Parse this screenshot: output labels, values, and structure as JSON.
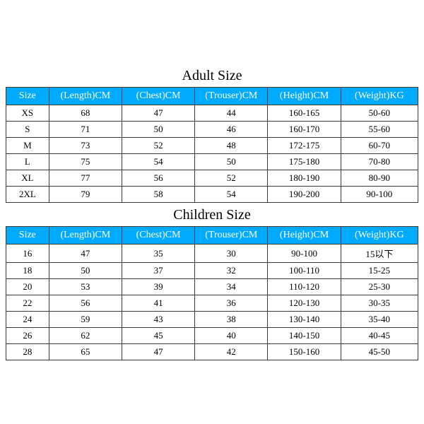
{
  "header_bg": "#00aaff",
  "header_fg": "#ffffff",
  "border_color": "#3a3a3a",
  "adult": {
    "title": "Adult Size",
    "columns": [
      "Size",
      "(Length)CM",
      "(Chest)CM",
      "(Trouser)CM",
      "(Height)CM",
      "(Weight)KG"
    ],
    "rows": [
      [
        "XS",
        "68",
        "47",
        "44",
        "160-165",
        "50-60"
      ],
      [
        "S",
        "71",
        "50",
        "46",
        "160-170",
        "55-60"
      ],
      [
        "M",
        "73",
        "52",
        "48",
        "172-175",
        "60-70"
      ],
      [
        "L",
        "75",
        "54",
        "50",
        "175-180",
        "70-80"
      ],
      [
        "XL",
        "77",
        "56",
        "52",
        "180-190",
        "80-90"
      ],
      [
        "2XL",
        "79",
        "58",
        "54",
        "190-200",
        "90-100"
      ]
    ]
  },
  "children": {
    "title": "Children Size",
    "columns": [
      "Size",
      "(Length)CM",
      "(Chest)CM",
      "(Trouser)CM",
      "(Height)CM",
      "(Weight)KG"
    ],
    "rows": [
      [
        "16",
        "47",
        "35",
        "30",
        "90-100",
        "15以下"
      ],
      [
        "18",
        "50",
        "37",
        "32",
        "100-110",
        "15-25"
      ],
      [
        "20",
        "53",
        "39",
        "34",
        "110-120",
        "25-30"
      ],
      [
        "22",
        "56",
        "41",
        "36",
        "120-130",
        "30-35"
      ],
      [
        "24",
        "59",
        "43",
        "38",
        "130-140",
        "35-40"
      ],
      [
        "26",
        "62",
        "45",
        "40",
        "140-150",
        "40-45"
      ],
      [
        "28",
        "65",
        "47",
        "42",
        "150-160",
        "45-50"
      ]
    ]
  }
}
